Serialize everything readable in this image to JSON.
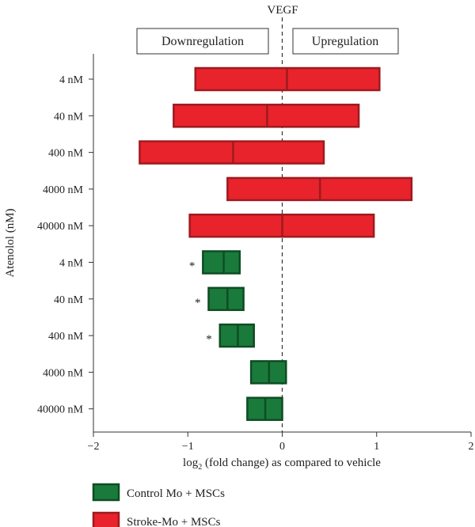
{
  "chart_data": {
    "type": "bar",
    "orientation": "horizontal",
    "title": "VEGF",
    "xlabel_prefix": "log",
    "xlabel_sub": "2",
    "xlabel_suffix": " (fold change) as compared to vehicle",
    "ylabel": "Atenolol (nM)",
    "xlim": [
      -2,
      2
    ],
    "xticks": [
      -2,
      -1,
      0,
      1,
      2
    ],
    "xtick_labels": [
      "−2",
      "−1",
      "0",
      "1",
      "2"
    ],
    "region_labels": {
      "left": "Downregulation",
      "right": "Upregulation"
    },
    "colors": {
      "control": "#1a7a3c",
      "stroke": "#e8232b",
      "control_edge": "#0e4d22",
      "stroke_edge": "#9e1a1f"
    },
    "series": [
      {
        "name": "Stroke-Mo + MSCs",
        "key": "stroke",
        "categories": [
          "4 nM",
          "40 nM",
          "400 nM",
          "4000 nM",
          "40000 nM"
        ],
        "low": [
          -0.92,
          -1.15,
          -1.51,
          -0.58,
          -0.98
        ],
        "mid": [
          0.05,
          -0.16,
          -0.52,
          0.4,
          0.0
        ],
        "high": [
          1.03,
          0.81,
          0.44,
          1.37,
          0.97
        ],
        "annotations": [
          "",
          "",
          "",
          "",
          ""
        ]
      },
      {
        "name": "Control Mo + MSCs",
        "key": "control",
        "categories": [
          "4 nM",
          "40 nM",
          "400 nM",
          "4000 nM",
          "40000 nM"
        ],
        "low": [
          -0.84,
          -0.78,
          -0.66,
          -0.33,
          -0.37
        ],
        "mid": [
          -0.62,
          -0.58,
          -0.47,
          -0.14,
          -0.18
        ],
        "high": [
          -0.45,
          -0.41,
          -0.3,
          0.04,
          0.0
        ],
        "annotations": [
          "*",
          "*",
          "*",
          "",
          ""
        ]
      }
    ],
    "legend": [
      {
        "label": "Control Mo + MSCs",
        "key": "control"
      },
      {
        "label": "Stroke-Mo + MSCs",
        "key": "stroke"
      }
    ],
    "legend_position": "bottom-left",
    "zero_line": "dashed"
  }
}
